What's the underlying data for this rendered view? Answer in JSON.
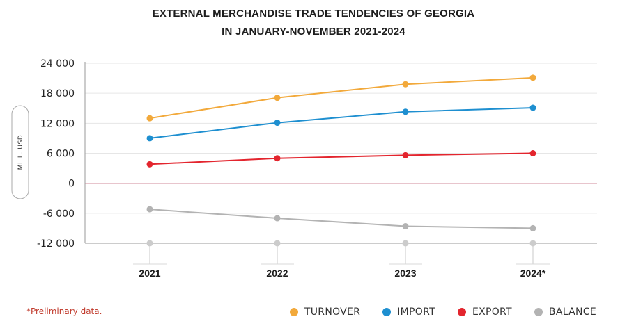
{
  "title_line1": "EXTERNAL MERCHANDISE TRADE TENDENCIES OF GEORGIA",
  "title_line2": "IN JANUARY-NOVEMBER 2021-2024",
  "footnote": "*Preliminary data.",
  "chart_data": {
    "type": "line",
    "ylabel": "MILL. USD",
    "ylim": [
      -12000,
      24000
    ],
    "yticks": [
      24000,
      18000,
      12000,
      6000,
      0,
      -6000,
      -12000
    ],
    "ytick_labels": [
      "24 000",
      "18 000",
      "12 000",
      "6 000",
      "0",
      "-6 000",
      "-12 000"
    ],
    "categories": [
      "2021",
      "2022",
      "2023",
      "2024*"
    ],
    "grid": true,
    "legend_placement": "bottom-right",
    "series": [
      {
        "name": "TURNOVER",
        "color": "#f2a93b",
        "values": [
          13000,
          17100,
          19800,
          21100
        ]
      },
      {
        "name": "IMPORT",
        "color": "#1e8fd0",
        "values": [
          9000,
          12100,
          14300,
          15100
        ]
      },
      {
        "name": "EXPORT",
        "color": "#e3252e",
        "values": [
          3800,
          5000,
          5600,
          6000
        ]
      },
      {
        "name": "BALANCE",
        "color": "#b3b3b3",
        "values": [
          -5200,
          -7000,
          -8600,
          -9000
        ]
      }
    ]
  }
}
